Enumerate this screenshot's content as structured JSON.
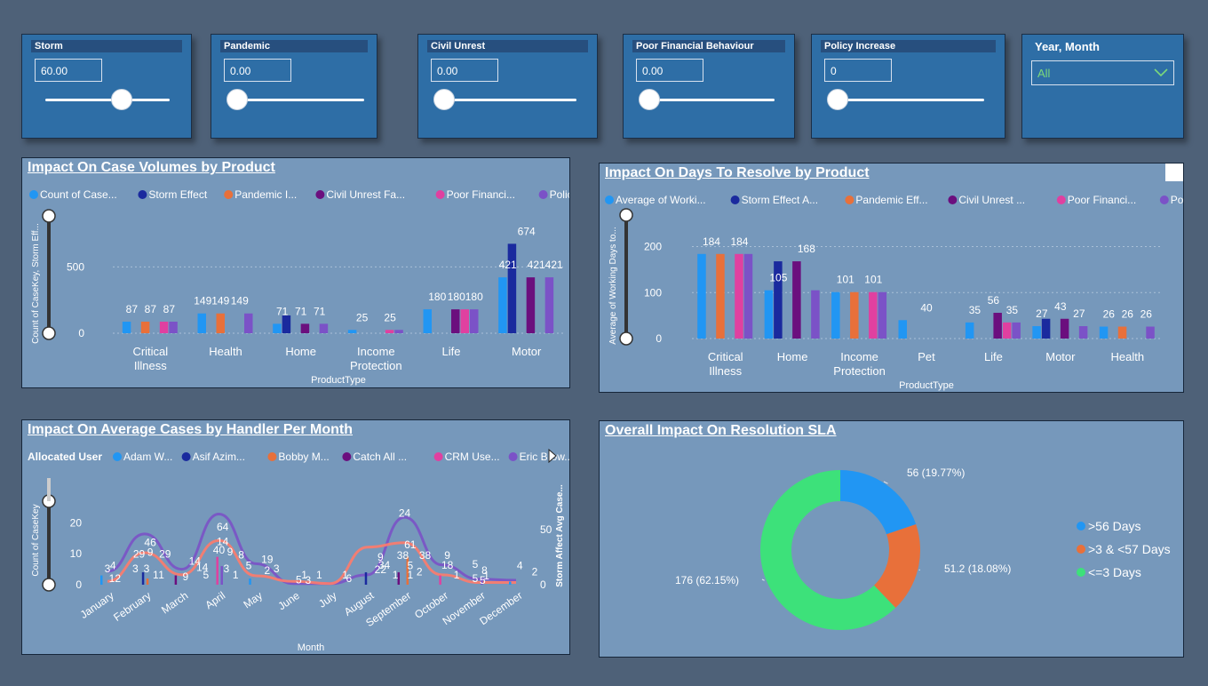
{
  "colors": {
    "blue": "#2196f3",
    "navy": "#1a2a9e",
    "orange": "#e8703a",
    "purple": "#6b0f7e",
    "pink": "#e040a0",
    "lavender": "#7b52c7",
    "green": "#3de17a",
    "panel": "#7698bb",
    "slicer": "#2e6ea6",
    "background": "#4e6178"
  },
  "slicers": [
    {
      "title": "Storm",
      "value": "60.00",
      "position": 0.6
    },
    {
      "title": "Pandemic",
      "value": "0.00",
      "position": 0
    },
    {
      "title": "Civil Unrest",
      "value": "0.00",
      "position": 0
    },
    {
      "title": "Poor Financial Behaviour",
      "value": "0.00",
      "position": 0
    },
    {
      "title": "Policy Increase",
      "value": "0",
      "position": 0
    }
  ],
  "year_month": {
    "title": "Year, Month",
    "value": "All",
    "icon": "chevron-down-icon"
  },
  "case_volumes": {
    "title": "Impact On Case Volumes by Product",
    "legend": [
      "Count of Case...",
      "Storm Effect",
      "Pandemic I...",
      "Civil Unrest Fa...",
      "Poor Financi...",
      "Policy Increase"
    ],
    "y_label": "Count of CaseKey, Storm Eff...",
    "x_label": "ProductType",
    "y_ticks": [
      "0",
      "500"
    ],
    "chart_data": {
      "type": "bar",
      "categories": [
        "Critical Illness",
        "Health",
        "Home",
        "Income Protection",
        "Life",
        "Motor"
      ],
      "ylim": [
        0,
        750
      ],
      "series": [
        {
          "name": "Count of Case...",
          "values": [
            87,
            149,
            71,
            25,
            180,
            421
          ]
        },
        {
          "name": "Storm Effect",
          "values": [
            null,
            null,
            134,
            null,
            null,
            674
          ]
        },
        {
          "name": "Pandemic I...",
          "values": [
            87,
            149,
            null,
            null,
            null,
            null
          ]
        },
        {
          "name": "Civil Unrest Fa...",
          "values": [
            null,
            null,
            71,
            null,
            180,
            421
          ]
        },
        {
          "name": "Poor Financi...",
          "values": [
            87,
            null,
            null,
            25,
            180,
            null
          ]
        },
        {
          "name": "Policy Increase",
          "values": [
            87,
            149,
            71,
            25,
            180,
            421
          ]
        }
      ],
      "data_labels": [
        [
          "87",
          "87",
          "87"
        ],
        [
          "149149",
          "149"
        ],
        [
          "71",
          "71",
          "71"
        ],
        [
          "25",
          "25"
        ],
        [
          "180",
          "180180"
        ],
        [
          "421",
          "674",
          "421421"
        ]
      ]
    }
  },
  "days_to_resolve": {
    "title": "Impact On Days To Resolve by Product",
    "legend": [
      "Average of Worki...",
      "Storm Effect A...",
      "Pandemic Eff...",
      "Civil Unrest ...",
      "Poor Financi...",
      "Policy Increa..."
    ],
    "y_label": "Average of Working Days to...",
    "x_label": "ProductType",
    "y_ticks": [
      "0",
      "100",
      "200"
    ],
    "chart_data": {
      "type": "bar",
      "categories": [
        "Critical Illness",
        "Home",
        "Income Protection",
        "Pet",
        "Life",
        "Motor",
        "Health"
      ],
      "ylim": [
        0,
        230
      ],
      "series": [
        {
          "name": "Average of Worki...",
          "values": [
            184,
            105,
            101,
            40,
            35,
            27,
            26
          ]
        },
        {
          "name": "Storm Effect A...",
          "values": [
            null,
            168,
            null,
            null,
            null,
            43,
            null
          ]
        },
        {
          "name": "Pandemic Eff...",
          "values": [
            184,
            null,
            101,
            null,
            null,
            null,
            26
          ]
        },
        {
          "name": "Civil Unrest ...",
          "values": [
            null,
            168,
            null,
            null,
            56,
            43,
            null
          ]
        },
        {
          "name": "Poor Financi...",
          "values": [
            184,
            null,
            101,
            null,
            35,
            null,
            null
          ]
        },
        {
          "name": "Policy Increa...",
          "values": [
            184,
            105,
            101,
            null,
            35,
            27,
            26
          ]
        }
      ],
      "data_labels": [
        [
          "184",
          "184"
        ],
        [
          "105",
          "168"
        ],
        [
          "101",
          "101"
        ],
        [
          "40"
        ],
        [
          "35",
          "56",
          "35"
        ],
        [
          "27",
          "43",
          "27"
        ],
        [
          "26",
          "26",
          "26"
        ]
      ]
    }
  },
  "avg_cases": {
    "title": "Impact On Average Cases by Handler Per Month",
    "legend_title": "Allocated User",
    "legend": [
      "Adam W...",
      "Asif Azim...",
      "Bobby M...",
      "Catch All ...",
      "CRM Use...",
      "Eric Brow..."
    ],
    "y_label": "Count of CaseKey",
    "y2_label": "Storm Affect Avg Case...",
    "x_label": "Month",
    "y_ticks": [
      "0",
      "10",
      "20"
    ],
    "y2_ticks": [
      "0",
      "50"
    ],
    "chart_data": {
      "type": "line",
      "categories": [
        "January",
        "February",
        "March",
        "April",
        "May",
        "June",
        "July",
        "August",
        "September",
        "October",
        "November",
        "December"
      ],
      "series": [
        {
          "values": [
            12,
            46,
            14,
            64,
            19,
            1,
            1,
            9,
            61,
            18,
            5,
            4
          ]
        },
        {
          "values": [
            3,
            29,
            9,
            40,
            8,
            3,
            1,
            34,
            38,
            9,
            2,
            2
          ]
        }
      ],
      "labels": [
        {
          "text": "3",
          "m": 0,
          "v": 4
        },
        {
          "text": "4",
          "m": 0.15,
          "v": 5
        },
        {
          "text": "12",
          "m": 0.2,
          "v": 0.8
        },
        {
          "text": "46",
          "m": 1.15,
          "v": 12.5
        },
        {
          "text": "29",
          "m": 0.85,
          "v": 8.8
        },
        {
          "text": "9",
          "m": 1.15,
          "v": 9.3
        },
        {
          "text": "29",
          "m": 1.55,
          "v": 8.8
        },
        {
          "text": "3",
          "m": 0.75,
          "v": 4
        },
        {
          "text": "3",
          "m": 1.05,
          "v": 4
        },
        {
          "text": "1",
          "m": 1.3,
          "v": 2
        },
        {
          "text": "1",
          "m": 1.45,
          "v": 2
        },
        {
          "text": "14",
          "m": 2.35,
          "v": 6.5
        },
        {
          "text": "9",
          "m": 2.1,
          "v": 1.5
        },
        {
          "text": "14",
          "m": 2.55,
          "v": 4.5
        },
        {
          "text": "5",
          "m": 2.65,
          "v": 2
        },
        {
          "text": "64",
          "m": 3.1,
          "v": 17.5
        },
        {
          "text": "14",
          "m": 3.1,
          "v": 12.8
        },
        {
          "text": "40",
          "m": 3.0,
          "v": 10
        },
        {
          "text": "9",
          "m": 3.3,
          "v": 9.5
        },
        {
          "text": "8",
          "m": 3.6,
          "v": 8.5
        },
        {
          "text": "3",
          "m": 3.2,
          "v": 4
        },
        {
          "text": "1",
          "m": 3.45,
          "v": 2
        },
        {
          "text": "5",
          "m": 3.8,
          "v": 5
        },
        {
          "text": "19",
          "m": 4.3,
          "v": 7
        },
        {
          "text": "3",
          "m": 4.55,
          "v": 4
        },
        {
          "text": "2",
          "m": 4.3,
          "v": 3.5
        },
        {
          "text": "1",
          "m": 5.3,
          "v": 2
        },
        {
          "text": "1",
          "m": 5.7,
          "v": 2
        },
        {
          "text": "5",
          "m": 5.15,
          "v": 0.5
        },
        {
          "text": "3",
          "m": 5.4,
          "v": 0.3
        },
        {
          "text": "1",
          "m": 6.4,
          "v": 2
        },
        {
          "text": "6",
          "m": 6.5,
          "v": 0.8
        },
        {
          "text": "9",
          "m": 7.35,
          "v": 7.8
        },
        {
          "text": "34",
          "m": 7.45,
          "v": 5.2
        },
        {
          "text": "22",
          "m": 7.35,
          "v": 3.8
        },
        {
          "text": "1",
          "m": 7.75,
          "v": 2
        },
        {
          "text": "24",
          "m": 8.0,
          "v": 22
        },
        {
          "text": "61",
          "m": 8.15,
          "v": 11.8
        },
        {
          "text": "38",
          "m": 7.95,
          "v": 8.3
        },
        {
          "text": "5",
          "m": 8.15,
          "v": 5
        },
        {
          "text": "1",
          "m": 8.15,
          "v": 2
        },
        {
          "text": "38",
          "m": 8.55,
          "v": 8.3
        },
        {
          "text": "2",
          "m": 8.4,
          "v": 3
        },
        {
          "text": "9",
          "m": 9.15,
          "v": 8.3
        },
        {
          "text": "18",
          "m": 9.15,
          "v": 5.2
        },
        {
          "text": "1",
          "m": 9.4,
          "v": 2
        },
        {
          "text": "5",
          "m": 9.9,
          "v": 5.5
        },
        {
          "text": "8",
          "m": 10.15,
          "v": 3.5
        },
        {
          "text": "5",
          "m": 9.9,
          "v": 0.8
        },
        {
          "text": "1",
          "m": 10.2,
          "v": 1.7
        },
        {
          "text": "4",
          "m": 11.1,
          "v": 5
        },
        {
          "text": "2",
          "m": 11.5,
          "v": 3
        },
        {
          "text": "5",
          "m": 10.1,
          "v": 0.3
        }
      ]
    }
  },
  "sla": {
    "title": "Overall Impact On Resolution SLA",
    "chart_data": {
      "type": "pie",
      "slices": [
        {
          "label": ">56 Days",
          "value": 56,
          "text": "56 (19.77%)"
        },
        {
          "label": ">3 & <57 Days",
          "value": 51.2,
          "text": "51.2 (18.08%)"
        },
        {
          "label": "<=3 Days",
          "value": 176,
          "text": "176 (62.15%)"
        }
      ]
    }
  }
}
